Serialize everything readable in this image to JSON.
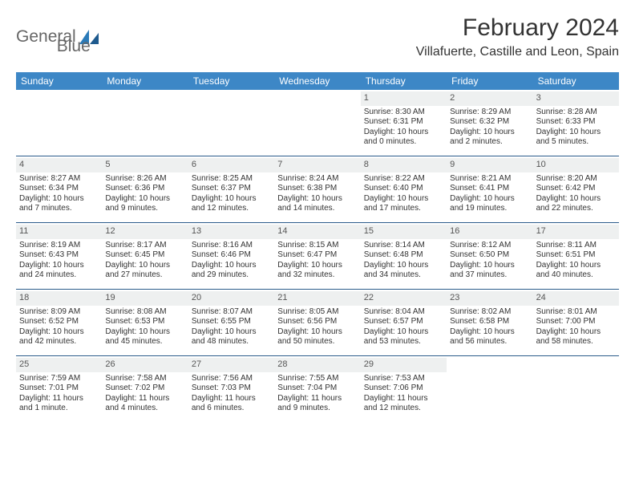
{
  "logo": {
    "word1": "General",
    "word2": "Blue"
  },
  "title": "February 2024",
  "location": "Villafuerte, Castille and Leon, Spain",
  "colors": {
    "header_bg": "#3d87c6",
    "header_text": "#ffffff",
    "day_num_bg": "#eef0f0",
    "week_border": "#2a5b8a",
    "logo_gray": "#666666",
    "logo_blue": "#2a7ab8"
  },
  "day_names": [
    "Sunday",
    "Monday",
    "Tuesday",
    "Wednesday",
    "Thursday",
    "Friday",
    "Saturday"
  ],
  "weeks": [
    [
      {
        "empty": true
      },
      {
        "empty": true
      },
      {
        "empty": true
      },
      {
        "empty": true
      },
      {
        "d": "1",
        "sr": "Sunrise: 8:30 AM",
        "ss": "Sunset: 6:31 PM",
        "dl1": "Daylight: 10 hours",
        "dl2": "and 0 minutes."
      },
      {
        "d": "2",
        "sr": "Sunrise: 8:29 AM",
        "ss": "Sunset: 6:32 PM",
        "dl1": "Daylight: 10 hours",
        "dl2": "and 2 minutes."
      },
      {
        "d": "3",
        "sr": "Sunrise: 8:28 AM",
        "ss": "Sunset: 6:33 PM",
        "dl1": "Daylight: 10 hours",
        "dl2": "and 5 minutes."
      }
    ],
    [
      {
        "d": "4",
        "sr": "Sunrise: 8:27 AM",
        "ss": "Sunset: 6:34 PM",
        "dl1": "Daylight: 10 hours",
        "dl2": "and 7 minutes."
      },
      {
        "d": "5",
        "sr": "Sunrise: 8:26 AM",
        "ss": "Sunset: 6:36 PM",
        "dl1": "Daylight: 10 hours",
        "dl2": "and 9 minutes."
      },
      {
        "d": "6",
        "sr": "Sunrise: 8:25 AM",
        "ss": "Sunset: 6:37 PM",
        "dl1": "Daylight: 10 hours",
        "dl2": "and 12 minutes."
      },
      {
        "d": "7",
        "sr": "Sunrise: 8:24 AM",
        "ss": "Sunset: 6:38 PM",
        "dl1": "Daylight: 10 hours",
        "dl2": "and 14 minutes."
      },
      {
        "d": "8",
        "sr": "Sunrise: 8:22 AM",
        "ss": "Sunset: 6:40 PM",
        "dl1": "Daylight: 10 hours",
        "dl2": "and 17 minutes."
      },
      {
        "d": "9",
        "sr": "Sunrise: 8:21 AM",
        "ss": "Sunset: 6:41 PM",
        "dl1": "Daylight: 10 hours",
        "dl2": "and 19 minutes."
      },
      {
        "d": "10",
        "sr": "Sunrise: 8:20 AM",
        "ss": "Sunset: 6:42 PM",
        "dl1": "Daylight: 10 hours",
        "dl2": "and 22 minutes."
      }
    ],
    [
      {
        "d": "11",
        "sr": "Sunrise: 8:19 AM",
        "ss": "Sunset: 6:43 PM",
        "dl1": "Daylight: 10 hours",
        "dl2": "and 24 minutes."
      },
      {
        "d": "12",
        "sr": "Sunrise: 8:17 AM",
        "ss": "Sunset: 6:45 PM",
        "dl1": "Daylight: 10 hours",
        "dl2": "and 27 minutes."
      },
      {
        "d": "13",
        "sr": "Sunrise: 8:16 AM",
        "ss": "Sunset: 6:46 PM",
        "dl1": "Daylight: 10 hours",
        "dl2": "and 29 minutes."
      },
      {
        "d": "14",
        "sr": "Sunrise: 8:15 AM",
        "ss": "Sunset: 6:47 PM",
        "dl1": "Daylight: 10 hours",
        "dl2": "and 32 minutes."
      },
      {
        "d": "15",
        "sr": "Sunrise: 8:14 AM",
        "ss": "Sunset: 6:48 PM",
        "dl1": "Daylight: 10 hours",
        "dl2": "and 34 minutes."
      },
      {
        "d": "16",
        "sr": "Sunrise: 8:12 AM",
        "ss": "Sunset: 6:50 PM",
        "dl1": "Daylight: 10 hours",
        "dl2": "and 37 minutes."
      },
      {
        "d": "17",
        "sr": "Sunrise: 8:11 AM",
        "ss": "Sunset: 6:51 PM",
        "dl1": "Daylight: 10 hours",
        "dl2": "and 40 minutes."
      }
    ],
    [
      {
        "d": "18",
        "sr": "Sunrise: 8:09 AM",
        "ss": "Sunset: 6:52 PM",
        "dl1": "Daylight: 10 hours",
        "dl2": "and 42 minutes."
      },
      {
        "d": "19",
        "sr": "Sunrise: 8:08 AM",
        "ss": "Sunset: 6:53 PM",
        "dl1": "Daylight: 10 hours",
        "dl2": "and 45 minutes."
      },
      {
        "d": "20",
        "sr": "Sunrise: 8:07 AM",
        "ss": "Sunset: 6:55 PM",
        "dl1": "Daylight: 10 hours",
        "dl2": "and 48 minutes."
      },
      {
        "d": "21",
        "sr": "Sunrise: 8:05 AM",
        "ss": "Sunset: 6:56 PM",
        "dl1": "Daylight: 10 hours",
        "dl2": "and 50 minutes."
      },
      {
        "d": "22",
        "sr": "Sunrise: 8:04 AM",
        "ss": "Sunset: 6:57 PM",
        "dl1": "Daylight: 10 hours",
        "dl2": "and 53 minutes."
      },
      {
        "d": "23",
        "sr": "Sunrise: 8:02 AM",
        "ss": "Sunset: 6:58 PM",
        "dl1": "Daylight: 10 hours",
        "dl2": "and 56 minutes."
      },
      {
        "d": "24",
        "sr": "Sunrise: 8:01 AM",
        "ss": "Sunset: 7:00 PM",
        "dl1": "Daylight: 10 hours",
        "dl2": "and 58 minutes."
      }
    ],
    [
      {
        "d": "25",
        "sr": "Sunrise: 7:59 AM",
        "ss": "Sunset: 7:01 PM",
        "dl1": "Daylight: 11 hours",
        "dl2": "and 1 minute."
      },
      {
        "d": "26",
        "sr": "Sunrise: 7:58 AM",
        "ss": "Sunset: 7:02 PM",
        "dl1": "Daylight: 11 hours",
        "dl2": "and 4 minutes."
      },
      {
        "d": "27",
        "sr": "Sunrise: 7:56 AM",
        "ss": "Sunset: 7:03 PM",
        "dl1": "Daylight: 11 hours",
        "dl2": "and 6 minutes."
      },
      {
        "d": "28",
        "sr": "Sunrise: 7:55 AM",
        "ss": "Sunset: 7:04 PM",
        "dl1": "Daylight: 11 hours",
        "dl2": "and 9 minutes."
      },
      {
        "d": "29",
        "sr": "Sunrise: 7:53 AM",
        "ss": "Sunset: 7:06 PM",
        "dl1": "Daylight: 11 hours",
        "dl2": "and 12 minutes."
      },
      {
        "empty": true
      },
      {
        "empty": true
      }
    ]
  ]
}
